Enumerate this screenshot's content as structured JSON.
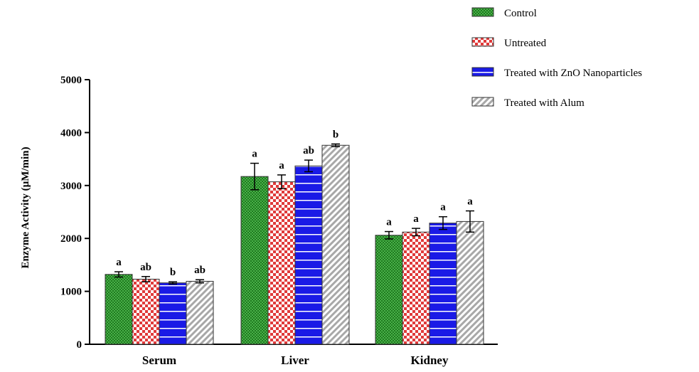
{
  "chart_data": {
    "type": "bar",
    "title": "",
    "xlabel": "",
    "ylabel": "Enzyme Activity (µM/min)",
    "ylim": [
      0,
      5000
    ],
    "yticks": [
      0,
      1000,
      2000,
      3000,
      4000,
      5000
    ],
    "categories": [
      "Serum",
      "Liver",
      "Kidney"
    ],
    "legend_position": "top-right",
    "grid": false,
    "series": [
      {
        "name": "Control",
        "color": "#2e8b2e",
        "pattern": "dots",
        "values": [
          1320,
          3170,
          2060
        ],
        "errors": [
          50,
          250,
          70
        ],
        "labels": [
          "a",
          "a",
          "a"
        ]
      },
      {
        "name": "Untreated",
        "color": "#e03a3a",
        "pattern": "checker",
        "values": [
          1230,
          3070,
          2120
        ],
        "errors": [
          50,
          130,
          70
        ],
        "labels": [
          "ab",
          "a",
          "a"
        ]
      },
      {
        "name": "Treated with ZnO Nanoparticles",
        "color": "#1a1ae6",
        "pattern": "horizontal-lines",
        "values": [
          1160,
          3370,
          2290
        ],
        "errors": [
          20,
          110,
          120
        ],
        "labels": [
          "b",
          "ab",
          "a"
        ]
      },
      {
        "name": "Treated with Alum",
        "color": "#a8a8a8",
        "pattern": "diagonal-stripes",
        "values": [
          1190,
          3760,
          2320
        ],
        "errors": [
          30,
          25,
          200
        ],
        "labels": [
          "ab",
          "b",
          "a"
        ]
      }
    ]
  }
}
